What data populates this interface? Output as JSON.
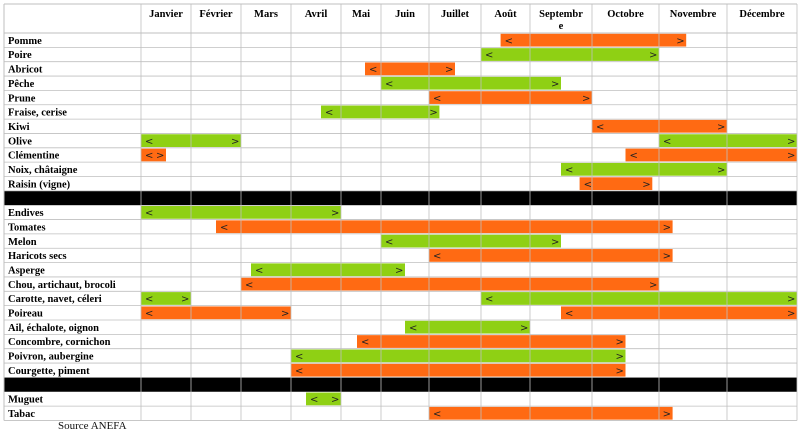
{
  "source": "Source ANEFA",
  "colors": {
    "orange": "#ff6a13",
    "green": "#8fd014",
    "separator": "#000000",
    "grid": "#bfbfbf"
  },
  "chart_data": {
    "type": "table",
    "subtype": "seasonal-timeline",
    "months": [
      "Janvier",
      "Février",
      "Mars",
      "Avril",
      "Mai",
      "Juin",
      "Juillet",
      "Août",
      "Septembre",
      "Octobre",
      "Novembre",
      "Décembre"
    ],
    "month_display": [
      "Janvier",
      "Février",
      "Mars",
      "Avril",
      "Mai",
      "Juin",
      "Juillet",
      "Août",
      "Septembr\ne",
      "Octobre",
      "Novembre",
      "Décembre"
    ],
    "groups": [
      [
        {
          "name": "Pomme",
          "bars": [
            {
              "start": 7.4,
              "end": 10.4,
              "color": "orange"
            }
          ]
        },
        {
          "name": "Poire",
          "bars": [
            {
              "start": 7.0,
              "end": 10.0,
              "color": "green"
            }
          ]
        },
        {
          "name": "Abricot",
          "bars": [
            {
              "start": 4.6,
              "end": 6.5,
              "color": "orange"
            }
          ]
        },
        {
          "name": "Pêche",
          "bars": [
            {
              "start": 5.0,
              "end": 8.5,
              "color": "green"
            }
          ]
        },
        {
          "name": "Prune",
          "bars": [
            {
              "start": 6.0,
              "end": 9.0,
              "color": "orange"
            }
          ]
        },
        {
          "name": "Fraise, cerise",
          "bars": [
            {
              "start": 3.6,
              "end": 6.2,
              "color": "green"
            }
          ]
        },
        {
          "name": "Kiwi",
          "bars": [
            {
              "start": 9.0,
              "end": 11.0,
              "color": "orange"
            }
          ]
        },
        {
          "name": "Olive",
          "bars": [
            {
              "start": 0.0,
              "end": 2.0,
              "color": "green"
            },
            {
              "start": 10.0,
              "end": 12.0,
              "color": "green"
            }
          ]
        },
        {
          "name": "Clémentine",
          "bars": [
            {
              "start": 0.0,
              "end": 0.5,
              "color": "orange"
            },
            {
              "start": 9.5,
              "end": 12.0,
              "color": "orange"
            }
          ]
        },
        {
          "name": "Noix, châtaigne",
          "bars": [
            {
              "start": 8.5,
              "end": 11.0,
              "color": "green"
            }
          ]
        },
        {
          "name": "Raisin (vigne)",
          "bars": [
            {
              "start": 8.8,
              "end": 9.9,
              "color": "orange"
            }
          ]
        }
      ],
      [
        {
          "name": "Endives",
          "bars": [
            {
              "start": 0.0,
              "end": 4.0,
              "color": "green"
            }
          ]
        },
        {
          "name": "Tomates",
          "bars": [
            {
              "start": 1.5,
              "end": 10.2,
              "color": "orange"
            }
          ]
        },
        {
          "name": "Melon",
          "bars": [
            {
              "start": 5.0,
              "end": 8.5,
              "color": "green"
            }
          ]
        },
        {
          "name": "Haricots secs",
          "bars": [
            {
              "start": 6.0,
              "end": 10.2,
              "color": "orange"
            }
          ]
        },
        {
          "name": "Asperge",
          "bars": [
            {
              "start": 2.2,
              "end": 5.5,
              "color": "green"
            }
          ]
        },
        {
          "name": "Chou, artichaut, brocoli",
          "bars": [
            {
              "start": 2.0,
              "end": 10.0,
              "color": "orange"
            }
          ]
        },
        {
          "name": "Carotte, navet, céleri",
          "bars": [
            {
              "start": 0.0,
              "end": 1.0,
              "color": "green"
            },
            {
              "start": 7.0,
              "end": 12.0,
              "color": "green"
            }
          ]
        },
        {
          "name": "Poireau",
          "bars": [
            {
              "start": 0.0,
              "end": 3.0,
              "color": "orange"
            },
            {
              "start": 8.5,
              "end": 12.0,
              "color": "orange"
            }
          ]
        },
        {
          "name": "Ail, échalote, oignon",
          "bars": [
            {
              "start": 5.5,
              "end": 8.0,
              "color": "green"
            }
          ]
        },
        {
          "name": "Concombre, cornichon",
          "bars": [
            {
              "start": 4.4,
              "end": 9.5,
              "color": "orange"
            }
          ]
        },
        {
          "name": "Poivron, aubergine",
          "bars": [
            {
              "start": 3.0,
              "end": 9.5,
              "color": "green"
            }
          ]
        },
        {
          "name": "Courgette, piment",
          "bars": [
            {
              "start": 3.0,
              "end": 9.5,
              "color": "orange"
            }
          ]
        }
      ],
      [
        {
          "name": "Muguet",
          "bars": [
            {
              "start": 3.3,
              "end": 4.0,
              "color": "green"
            }
          ]
        },
        {
          "name": "Tabac",
          "bars": [
            {
              "start": 6.0,
              "end": 10.2,
              "color": "orange"
            }
          ]
        }
      ]
    ]
  }
}
